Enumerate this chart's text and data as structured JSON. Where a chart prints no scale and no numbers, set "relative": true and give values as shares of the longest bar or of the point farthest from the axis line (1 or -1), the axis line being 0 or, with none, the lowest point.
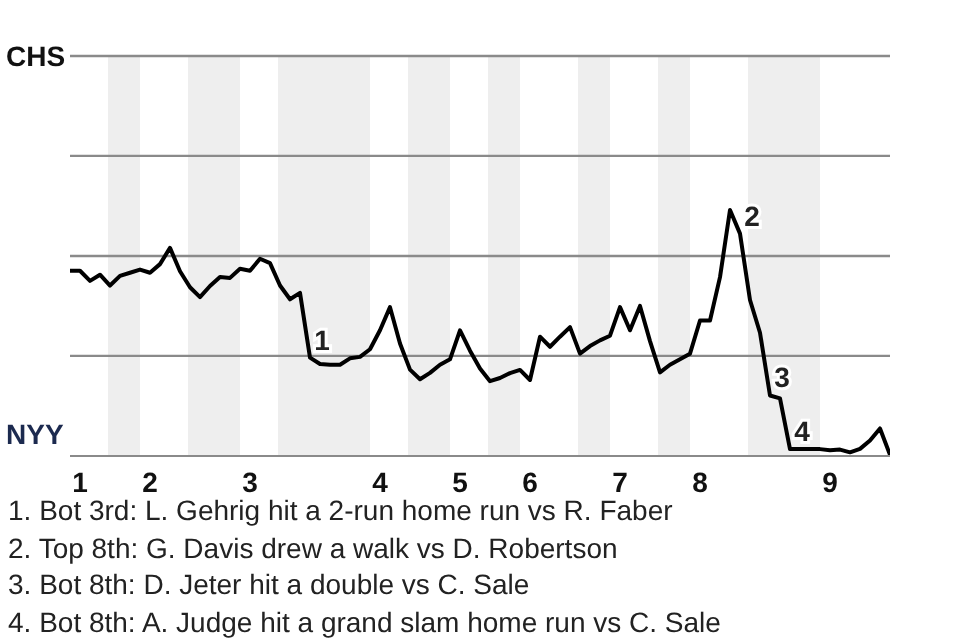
{
  "chart_data": {
    "type": "line",
    "relative": true,
    "categories": [
      null,
      "1",
      null,
      null,
      null,
      null,
      null,
      null,
      "2",
      null,
      null,
      null,
      null,
      null,
      null,
      null,
      null,
      null,
      "3",
      null,
      null,
      null,
      null,
      null,
      null,
      null,
      null,
      null,
      null,
      null,
      null,
      "4",
      null,
      null,
      null,
      null,
      null,
      null,
      null,
      "5",
      null,
      null,
      null,
      null,
      null,
      null,
      "6",
      null,
      null,
      null,
      null,
      null,
      null,
      null,
      null,
      "7",
      null,
      null,
      null,
      null,
      null,
      null,
      null,
      "8",
      null,
      null,
      null,
      null,
      null,
      null,
      null,
      null,
      null,
      null,
      null,
      null,
      "9",
      null,
      null,
      null,
      null,
      null,
      null
    ],
    "series": [
      {
        "color": "#000000",
        "values": [
          0.753,
          0.753,
          0.712,
          0.737,
          0.693,
          0.732,
          0.745,
          0.758,
          0.745,
          0.78,
          0.846,
          0.751,
          0.686,
          0.646,
          0.691,
          0.728,
          0.724,
          0.761,
          0.753,
          0.802,
          0.784,
          0.693,
          0.637,
          0.663,
          0.4,
          0.374,
          0.371,
          0.371,
          0.397,
          0.403,
          0.434,
          0.511,
          0.605,
          0.457,
          0.351,
          0.312,
          0.338,
          0.371,
          0.393,
          0.511,
          0.428,
          0.356,
          0.304,
          0.317,
          0.337,
          0.35,
          0.309,
          0.485,
          0.444,
          0.485,
          0.524,
          0.416,
          0.447,
          0.47,
          0.489,
          0.605,
          0.511,
          0.61,
          0.467,
          0.34,
          0.371,
          0.393,
          0.416,
          0.551,
          0.551,
          0.727,
          1,
          0.904,
          0.634,
          0.501,
          0.246,
          0.234,
          0.028,
          0.028,
          0.028,
          0.028,
          0.023,
          0.026,
          0.015,
          0.029,
          0.063,
          0.112,
          0.005
        ]
      }
    ],
    "marker": "none",
    "line_style": "solid",
    "ref_lines": [
      {
        "axis": "y",
        "value": 0.407,
        "color": "#8a8a8a"
      },
      {
        "axis": "y",
        "value": 0.813,
        "color": "#8a8a8a"
      },
      {
        "axis": "y",
        "value": 1.22,
        "color": "#8a8a8a"
      },
      {
        "axis": "y",
        "value": 1.626,
        "color": "#8a8a8a"
      }
    ],
    "annotations": [
      "CHS",
      "NYY",
      {
        "text": "1",
        "y": 0.4
      },
      {
        "text": "2",
        "y": 0.904
      },
      {
        "text": "3",
        "y": 0.246
      },
      {
        "text": "4",
        "y": 0.028
      },
      "1. Bot 3rd: L. Gehrig hit a 2-run home run vs R. Faber",
      "2. Top 8th: G. Davis drew a walk vs D. Robertson",
      "3. Bot 8th: D. Jeter hit a double vs C. Sale",
      "4. Bot 8th: A. Judge hit a grand slam home run vs C. Sale"
    ]
  }
}
